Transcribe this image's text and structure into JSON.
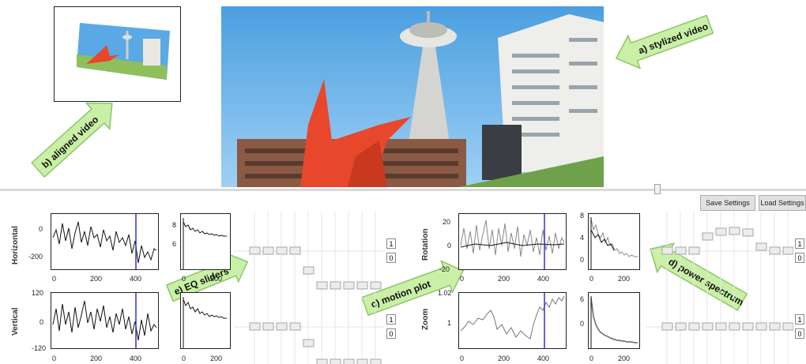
{
  "callouts": {
    "stylized": "a) stylized video",
    "aligned": "b) aligned video",
    "motion": "c) motion plot",
    "power": "d) power spectrum",
    "eq": "e) EQ sliders"
  },
  "buttons": {
    "save": "Save Settings",
    "load": "Load Settings"
  },
  "plots": {
    "horizontal": {
      "label": "Horizontal",
      "yticks": [
        "0",
        "-200"
      ],
      "xticks": [
        "0",
        "200",
        "400"
      ]
    },
    "vertical": {
      "label": "Vertical",
      "yticks": [
        "120",
        "0",
        "-120"
      ],
      "xticks": [
        "0",
        "200",
        "400"
      ]
    },
    "rotation": {
      "label": "Rotation",
      "yticks": [
        "20",
        "0",
        "-20"
      ],
      "xticks": [
        "0",
        "200",
        "400"
      ]
    },
    "zoom": {
      "label": "Zoom",
      "yticks": [
        "1.02",
        "1"
      ],
      "xticks": [
        "0",
        "200",
        "400"
      ]
    },
    "spec_h": {
      "yticks": [
        "8",
        "6"
      ],
      "xticks": [
        "0",
        "200"
      ]
    },
    "spec_v": {
      "yticks": [],
      "xticks": [
        "0",
        "200"
      ]
    },
    "spec_r": {
      "yticks": [
        "8",
        "4",
        "0"
      ],
      "xticks": [
        "0",
        "200"
      ]
    },
    "spec_z": {
      "yticks": [
        "6",
        "0"
      ],
      "xticks": [
        "0",
        "200"
      ]
    }
  },
  "eq_boxes": {
    "h_top": "1",
    "h_bot": "0",
    "v_top": "1",
    "v_bot": "0",
    "r_top": "1",
    "r_bot": "0",
    "z_top": "1",
    "z_bot": "0"
  },
  "colors": {
    "callout_fill": "#c9f0a6",
    "callout_stroke": "#8fc46a",
    "sky": "#5aa9e6",
    "sculpture": "#e8472b",
    "cursor_line": "#3333cc"
  }
}
